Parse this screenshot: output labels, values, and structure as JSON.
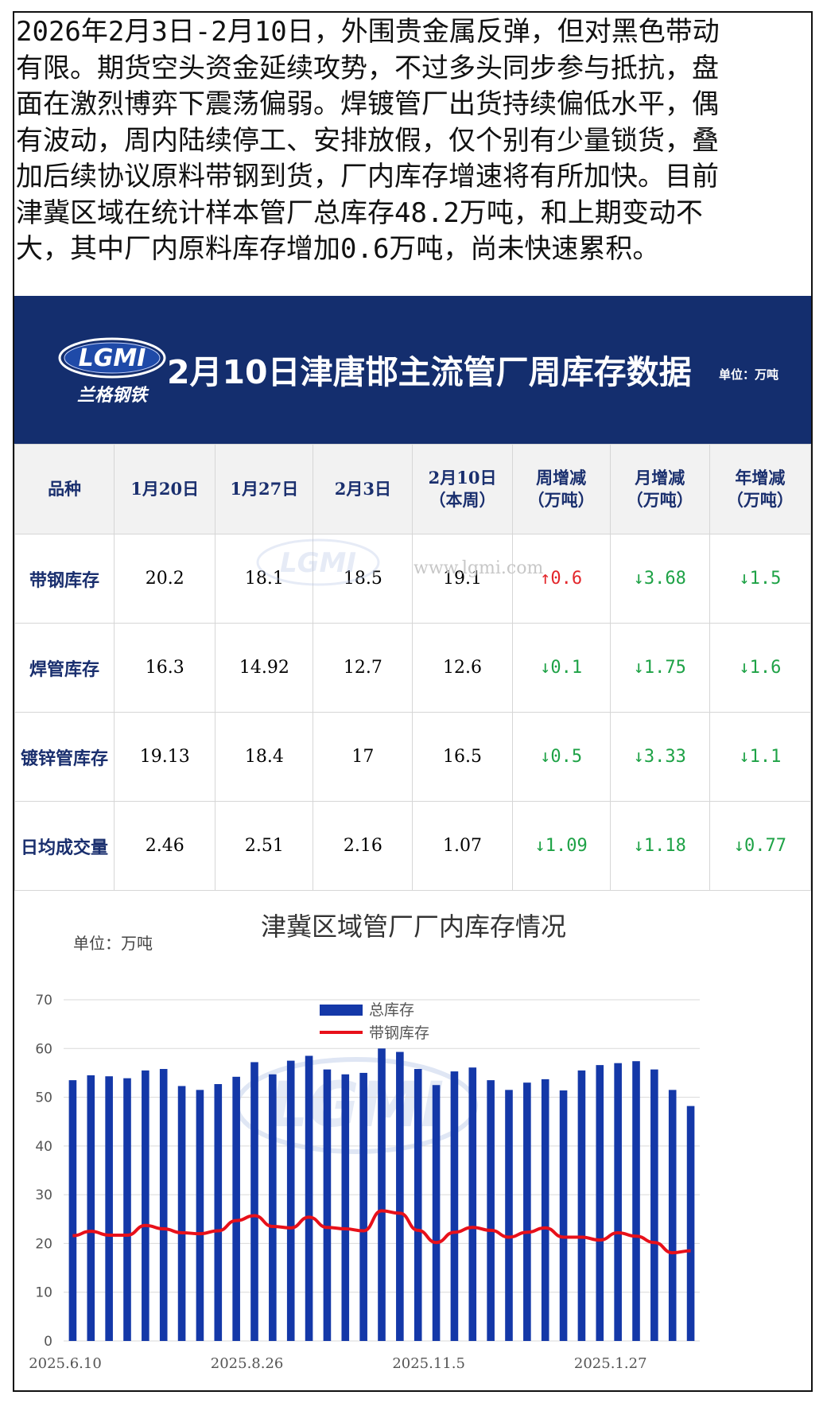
{
  "intro": {
    "lines": [
      "2026年2月3日-2月10日，外围贵金属反弹，但对黑色带动",
      "有限。期货空头资金延续攻势，不过多头同步参与抵抗，盘",
      "面在激烈博弈下震荡偏弱。焊镀管厂出货持续偏低水平，偶",
      "有波动，周内陆续停工、安排放假，仅个别有少量锁货，叠",
      "加后续协议原料带钢到货，厂内库存增速将有所加快。目前",
      "津冀区域在统计样本管厂总库存48.2万吨，和上期变动不",
      "大，其中厂内原料库存增加0.6万吨，尚未快速累积。"
    ]
  },
  "banner": {
    "logo_text": "LGMI",
    "logo_subtext": "兰格钢铁",
    "title": "2月10日津唐邯主流管厂周库存数据",
    "unit": "单位：万吨",
    "bg_color": "#142e6e"
  },
  "table": {
    "headers": [
      [
        "品种"
      ],
      [
        "1月20日"
      ],
      [
        "1月27日"
      ],
      [
        "2月3日"
      ],
      [
        "2月10日",
        "（本周）"
      ],
      [
        "周增减",
        "（万吨）"
      ],
      [
        "月增减",
        "（万吨）"
      ],
      [
        "年增减",
        "（万吨）"
      ]
    ],
    "rows": [
      {
        "name": "带钢库存",
        "values": [
          "20.2",
          "18.1",
          "18.5",
          "19.1"
        ],
        "changes": [
          {
            "dir": "up",
            "arrow": "↑",
            "value": "0.6"
          },
          {
            "dir": "down",
            "arrow": "↓",
            "value": "3.68"
          },
          {
            "dir": "down",
            "arrow": "↓",
            "value": "1.5"
          }
        ]
      },
      {
        "name": "焊管库存",
        "values": [
          "16.3",
          "14.92",
          "12.7",
          "12.6"
        ],
        "changes": [
          {
            "dir": "down",
            "arrow": "↓",
            "value": "0.1"
          },
          {
            "dir": "down",
            "arrow": "↓",
            "value": "1.75"
          },
          {
            "dir": "down",
            "arrow": "↓",
            "value": "1.6"
          }
        ]
      },
      {
        "name": "镀锌管库存",
        "values": [
          "19.13",
          "18.4",
          "17",
          "16.5"
        ],
        "changes": [
          {
            "dir": "down",
            "arrow": "↓",
            "value": "0.5"
          },
          {
            "dir": "down",
            "arrow": "↓",
            "value": "3.33"
          },
          {
            "dir": "down",
            "arrow": "↓",
            "value": "1.1"
          }
        ]
      },
      {
        "name": "日均成交量",
        "values": [
          "2.46",
          "2.51",
          "2.16",
          "1.07"
        ],
        "changes": [
          {
            "dir": "down",
            "arrow": "↓",
            "value": "1.09"
          },
          {
            "dir": "down",
            "arrow": "↓",
            "value": "1.18"
          },
          {
            "dir": "down",
            "arrow": "↓",
            "value": "0.77"
          }
        ]
      }
    ],
    "watermark_url": "www.lgmi.com",
    "colors": {
      "up": "#e3262b",
      "down": "#1ea246",
      "header_text": "#1a2f6e"
    }
  },
  "chart_data": {
    "type": "bar",
    "title": "津冀区域管厂厂内库存情况",
    "unit_label": "单位：万吨",
    "ylim": [
      0,
      70
    ],
    "yticks": [
      0,
      10,
      20,
      30,
      40,
      50,
      60,
      70
    ],
    "x_tick_labels": [
      "2025.6.10",
      "2025.8.26",
      "2025.11.5",
      "2025.1.27"
    ],
    "x_tick_label_indices": [
      0,
      10,
      20,
      30
    ],
    "grid": true,
    "legend_position": "top-center",
    "series": [
      {
        "name": "总库存",
        "kind": "bar",
        "color": "#1438a8",
        "values": [
          53.5,
          54.5,
          54.3,
          53.9,
          55.5,
          55.8,
          52.3,
          51.5,
          52.7,
          54.2,
          57.2,
          54.7,
          57.5,
          58.5,
          55.7,
          54.7,
          55.0,
          60.0,
          59.3,
          55.8,
          52.5,
          55.3,
          56.1,
          53.5,
          51.5,
          53.0,
          53.7,
          51.4,
          55.5,
          56.6,
          57.0,
          57.4,
          55.7,
          51.5,
          48.2
        ]
      },
      {
        "name": "带钢库存",
        "kind": "line",
        "color": "#e8101a",
        "values": [
          21.6,
          22.5,
          21.7,
          21.7,
          23.7,
          23.0,
          22.2,
          22.0,
          22.6,
          24.7,
          25.7,
          23.5,
          23.2,
          25.4,
          23.3,
          23.0,
          22.6,
          26.7,
          26.2,
          22.7,
          20.2,
          22.3,
          23.3,
          22.7,
          21.3,
          22.3,
          23.2,
          21.3,
          21.3,
          20.7,
          22.2,
          21.5,
          20.2,
          18.1,
          18.5
        ]
      }
    ]
  }
}
